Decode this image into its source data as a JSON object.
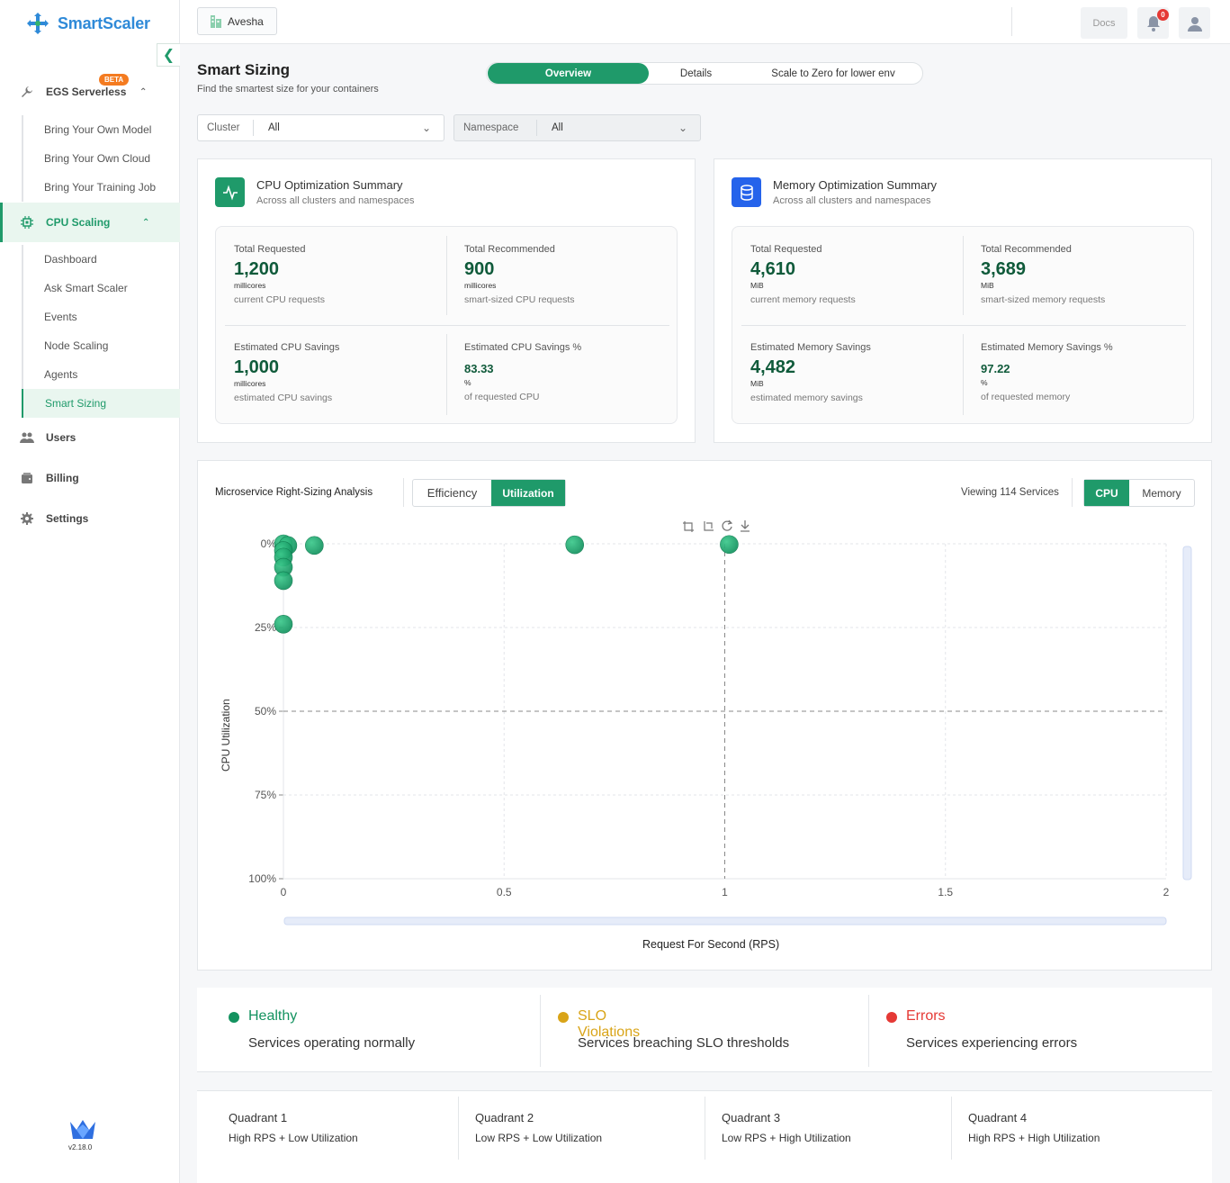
{
  "app": {
    "name": "SmartScaler",
    "version": "v2.18.0"
  },
  "topbar": {
    "org": "Avesha",
    "docs": "Docs",
    "notification_count": "0"
  },
  "sidebar": {
    "groups": [
      {
        "label": "EGS Serverless",
        "badge": "BETA"
      },
      {
        "label": "CPU Scaling"
      },
      {
        "label": "Users"
      },
      {
        "label": "Billing"
      },
      {
        "label": "Settings"
      }
    ],
    "egs_items": [
      "Bring Your Own Model",
      "Bring Your Own Cloud",
      "Bring Your Training Job"
    ],
    "cpu_items": [
      "Dashboard",
      "Ask Smart Scaler",
      "Events",
      "Node Scaling",
      "Agents",
      "Smart Sizing"
    ]
  },
  "header": {
    "title": "Smart Sizing",
    "subtitle": "Find the smartest size for your containers",
    "tabs": [
      "Overview",
      "Details",
      "Scale to Zero for lower env"
    ]
  },
  "filters": {
    "cluster": {
      "label": "Cluster",
      "value": "All"
    },
    "namespace": {
      "label": "Namespace",
      "value": "All"
    }
  },
  "cpu_summary": {
    "title": "CPU Optimization Summary",
    "subtitle": "Across all clusters and namespaces",
    "metrics": [
      {
        "label": "Total Requested",
        "value": "1,200",
        "unit": "millicores",
        "desc": "current CPU requests"
      },
      {
        "label": "Total Recommended",
        "value": "900",
        "unit": "millicores",
        "desc": "smart-sized CPU requests"
      },
      {
        "label": "Estimated CPU Savings",
        "value": "1,000",
        "unit": "millicores",
        "desc": "estimated CPU savings"
      },
      {
        "label": "Estimated CPU Savings %",
        "value": "83.33",
        "unit": "%",
        "desc": "of requested CPU"
      }
    ]
  },
  "memory_summary": {
    "title": "Memory Optimization Summary",
    "subtitle": "Across all clusters and namespaces",
    "metrics": [
      {
        "label": "Total Requested",
        "value": "4,610",
        "unit": "MiB",
        "desc": "current memory requests"
      },
      {
        "label": "Total Recommended",
        "value": "3,689",
        "unit": "MiB",
        "desc": "smart-sized memory requests"
      },
      {
        "label": "Estimated Memory Savings",
        "value": "4,482",
        "unit": "MiB",
        "desc": "estimated memory savings"
      },
      {
        "label": "Estimated Memory Savings %",
        "value": "97.22",
        "unit": "%",
        "desc": "of requested memory"
      }
    ]
  },
  "analysis": {
    "title": "Microservice Right-Sizing Analysis",
    "mode_tabs": [
      "Efficiency",
      "Utilization"
    ],
    "viewing": "Viewing 114 Services",
    "resource_tabs": [
      "CPU",
      "Memory"
    ]
  },
  "chart_data": {
    "type": "scatter",
    "xlabel": "Request For Second (RPS)",
    "ylabel": "CPU Utilization",
    "xlim": [
      0,
      2
    ],
    "ylim": [
      0,
      100
    ],
    "y_inverted": true,
    "x_ticks": [
      "0",
      "0.5",
      "1",
      "1.5",
      "2"
    ],
    "y_ticks": [
      "0%",
      "25%",
      "50%",
      "75%",
      "100%"
    ],
    "reference_lines": {
      "x": 1,
      "y": 50
    },
    "points": [
      {
        "x": 0.0,
        "y": 0
      },
      {
        "x": 0.01,
        "y": 0.5
      },
      {
        "x": 0.0,
        "y": 2
      },
      {
        "x": 0.0,
        "y": 4
      },
      {
        "x": 0.0,
        "y": 7
      },
      {
        "x": 0.0,
        "y": 11
      },
      {
        "x": 0.07,
        "y": 0.5
      },
      {
        "x": 0.66,
        "y": 0.3
      },
      {
        "x": 1.01,
        "y": 0.2
      },
      {
        "x": 0.0,
        "y": 24
      }
    ],
    "color": "#13925f",
    "grid": true
  },
  "status_legend": [
    {
      "label": "Healthy",
      "desc": "Services operating normally",
      "color": "#13925f"
    },
    {
      "label": "SLO Violations",
      "desc": "Services breaching SLO thresholds",
      "color": "#d9a418"
    },
    {
      "label": "Errors",
      "desc": "Services experiencing errors",
      "color": "#e53935"
    }
  ],
  "quadrants": [
    {
      "title": "Quadrant 1",
      "desc": "High RPS + Low Utilization"
    },
    {
      "title": "Quadrant 2",
      "desc": "Low RPS + Low Utilization"
    },
    {
      "title": "Quadrant 3",
      "desc": "Low RPS + High Utilization"
    },
    {
      "title": "Quadrant 4",
      "desc": "High RPS + High Utilization"
    }
  ]
}
